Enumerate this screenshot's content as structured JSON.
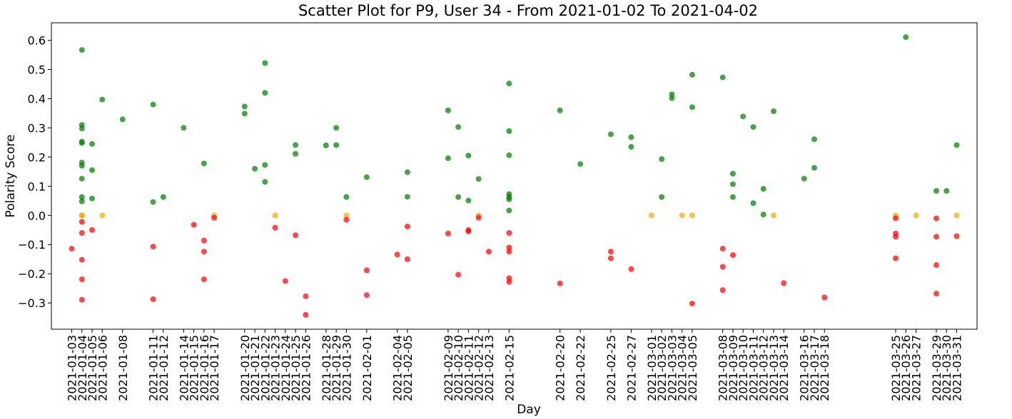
{
  "chart_data": {
    "type": "scatter",
    "title": "Scatter Plot for P9, User 34 - From 2021-01-02 To 2021-04-02",
    "xlabel": "Day",
    "ylabel": "Polarity Score",
    "ylim": [
      -0.39,
      0.66
    ],
    "xlim": [
      "2021-01-01",
      "2021-04-02"
    ],
    "grid": false,
    "y_ticks": [
      "0.6",
      "0.5",
      "0.4",
      "0.3",
      "0.2",
      "0.1",
      "0.0",
      "−0.1",
      "−0.2",
      "−0.3"
    ],
    "y_tick_values": [
      0.6,
      0.5,
      0.4,
      0.3,
      0.2,
      0.1,
      0.0,
      -0.1,
      -0.2,
      -0.3
    ],
    "x_ticks": [
      "2021-01-03",
      "2021-01-04",
      "2021-01-05",
      "2021-01-06",
      "2021-01-08",
      "2021-01-11",
      "2021-01-12",
      "2021-01-14",
      "2021-01-15",
      "2021-01-16",
      "2021-01-17",
      "2021-01-20",
      "2021-01-21",
      "2021-01-22",
      "2021-01-23",
      "2021-01-24",
      "2021-01-25",
      "2021-01-26",
      "2021-01-28",
      "2021-01-29",
      "2021-01-30",
      "2021-02-01",
      "2021-02-04",
      "2021-02-05",
      "2021-02-09",
      "2021-02-10",
      "2021-02-11",
      "2021-02-12",
      "2021-02-13",
      "2021-02-15",
      "2021-02-20",
      "2021-02-22",
      "2021-02-25",
      "2021-02-27",
      "2021-03-01",
      "2021-03-02",
      "2021-03-03",
      "2021-03-04",
      "2021-03-05",
      "2021-03-08",
      "2021-03-09",
      "2021-03-10",
      "2021-03-11",
      "2021-03-12",
      "2021-03-13",
      "2021-03-14",
      "2021-03-16",
      "2021-03-17",
      "2021-03-18",
      "2021-03-25",
      "2021-03-26",
      "2021-03-27",
      "2021-03-29",
      "2021-03-30",
      "2021-03-31"
    ],
    "colors": {
      "positive": "#008000",
      "neutral": "#ffa500",
      "negative": "#ff0000"
    },
    "series": [
      {
        "color": "positive",
        "points": [
          [
            "2021-01-04",
            0.567
          ],
          [
            "2021-01-04",
            0.31
          ],
          [
            "2021-01-04",
            0.298
          ],
          [
            "2021-01-04",
            0.253
          ],
          [
            "2021-01-04",
            0.248
          ],
          [
            "2021-01-04",
            0.181
          ],
          [
            "2021-01-04",
            0.17
          ],
          [
            "2021-01-04",
            0.126
          ],
          [
            "2021-01-04",
            0.063
          ],
          [
            "2021-01-04",
            0.048
          ],
          [
            "2021-01-05",
            0.245
          ],
          [
            "2021-01-05",
            0.155
          ],
          [
            "2021-01-05",
            0.058
          ],
          [
            "2021-01-06",
            0.397
          ],
          [
            "2021-01-08",
            0.329
          ],
          [
            "2021-01-11",
            0.38
          ],
          [
            "2021-01-11",
            0.046
          ],
          [
            "2021-01-12",
            0.063
          ],
          [
            "2021-01-14",
            0.3
          ],
          [
            "2021-01-16",
            0.178
          ],
          [
            "2021-01-20",
            0.373
          ],
          [
            "2021-01-20",
            0.349
          ],
          [
            "2021-01-21",
            0.16
          ],
          [
            "2021-01-22",
            0.522
          ],
          [
            "2021-01-22",
            0.42
          ],
          [
            "2021-01-22",
            0.173
          ],
          [
            "2021-01-22",
            0.115
          ],
          [
            "2021-01-25",
            0.241
          ],
          [
            "2021-01-25",
            0.211
          ],
          [
            "2021-01-28",
            0.24
          ],
          [
            "2021-01-29",
            0.3
          ],
          [
            "2021-01-29",
            0.241
          ],
          [
            "2021-01-30",
            0.063
          ],
          [
            "2021-02-01",
            0.131
          ],
          [
            "2021-02-05",
            0.148
          ],
          [
            "2021-02-05",
            0.064
          ],
          [
            "2021-02-09",
            0.36
          ],
          [
            "2021-02-09",
            0.196
          ],
          [
            "2021-02-10",
            0.303
          ],
          [
            "2021-02-10",
            0.063
          ],
          [
            "2021-02-11",
            0.205
          ],
          [
            "2021-02-11",
            0.051
          ],
          [
            "2021-02-12",
            0.125
          ],
          [
            "2021-02-15",
            0.452
          ],
          [
            "2021-02-15",
            0.289
          ],
          [
            "2021-02-15",
            0.206
          ],
          [
            "2021-02-15",
            0.073
          ],
          [
            "2021-02-15",
            0.063
          ],
          [
            "2021-02-15",
            0.055
          ],
          [
            "2021-02-15",
            0.017
          ],
          [
            "2021-02-20",
            0.36
          ],
          [
            "2021-02-22",
            0.176
          ],
          [
            "2021-02-25",
            0.278
          ],
          [
            "2021-02-27",
            0.268
          ],
          [
            "2021-02-27",
            0.235
          ],
          [
            "2021-03-02",
            0.193
          ],
          [
            "2021-03-02",
            0.063
          ],
          [
            "2021-03-03",
            0.415
          ],
          [
            "2021-03-03",
            0.402
          ],
          [
            "2021-03-05",
            0.482
          ],
          [
            "2021-03-05",
            0.371
          ],
          [
            "2021-03-08",
            0.473
          ],
          [
            "2021-03-09",
            0.143
          ],
          [
            "2021-03-09",
            0.107
          ],
          [
            "2021-03-09",
            0.063
          ],
          [
            "2021-03-10",
            0.339
          ],
          [
            "2021-03-11",
            0.303
          ],
          [
            "2021-03-11",
            0.042
          ],
          [
            "2021-03-12",
            0.091
          ],
          [
            "2021-03-12",
            0.003
          ],
          [
            "2021-03-13",
            0.357
          ],
          [
            "2021-03-16",
            0.126
          ],
          [
            "2021-03-17",
            0.261
          ],
          [
            "2021-03-17",
            0.163
          ],
          [
            "2021-03-26",
            0.611
          ],
          [
            "2021-03-29",
            0.084
          ],
          [
            "2021-03-30",
            0.084
          ],
          [
            "2021-03-31",
            0.241
          ]
        ]
      },
      {
        "color": "neutral",
        "points": [
          [
            "2021-01-04",
            0.0
          ],
          [
            "2021-01-04",
            0.0
          ],
          [
            "2021-01-06",
            0.0
          ],
          [
            "2021-01-17",
            0.0
          ],
          [
            "2021-01-23",
            0.0
          ],
          [
            "2021-01-30",
            0.0
          ],
          [
            "2021-02-12",
            0.0
          ],
          [
            "2021-03-01",
            0.0
          ],
          [
            "2021-03-04",
            0.0
          ],
          [
            "2021-03-05",
            0.0
          ],
          [
            "2021-03-13",
            0.0
          ],
          [
            "2021-03-25",
            0.0
          ],
          [
            "2021-03-27",
            0.0
          ],
          [
            "2021-03-31",
            0.0
          ]
        ]
      },
      {
        "color": "negative",
        "points": [
          [
            "2021-01-03",
            -0.114
          ],
          [
            "2021-01-04",
            -0.022
          ],
          [
            "2021-01-04",
            -0.06
          ],
          [
            "2021-01-04",
            -0.152
          ],
          [
            "2021-01-04",
            -0.219
          ],
          [
            "2021-01-04",
            -0.289
          ],
          [
            "2021-01-05",
            -0.05
          ],
          [
            "2021-01-11",
            -0.107
          ],
          [
            "2021-01-11",
            -0.287
          ],
          [
            "2021-01-15",
            -0.032
          ],
          [
            "2021-01-16",
            -0.086
          ],
          [
            "2021-01-16",
            -0.124
          ],
          [
            "2021-01-16",
            -0.219
          ],
          [
            "2021-01-17",
            -0.008
          ],
          [
            "2021-01-23",
            -0.042
          ],
          [
            "2021-01-24",
            -0.225
          ],
          [
            "2021-01-25",
            -0.068
          ],
          [
            "2021-01-26",
            -0.277
          ],
          [
            "2021-01-26",
            -0.341
          ],
          [
            "2021-01-30",
            -0.015
          ],
          [
            "2021-02-01",
            -0.188
          ],
          [
            "2021-02-01",
            -0.273
          ],
          [
            "2021-02-04",
            -0.134
          ],
          [
            "2021-02-05",
            -0.038
          ],
          [
            "2021-02-05",
            -0.15
          ],
          [
            "2021-02-09",
            -0.062
          ],
          [
            "2021-02-10",
            -0.203
          ],
          [
            "2021-02-11",
            -0.05
          ],
          [
            "2021-02-11",
            -0.055
          ],
          [
            "2021-02-12",
            -0.008
          ],
          [
            "2021-02-13",
            -0.124
          ],
          [
            "2021-02-15",
            -0.06
          ],
          [
            "2021-02-15",
            -0.11
          ],
          [
            "2021-02-15",
            -0.124
          ],
          [
            "2021-02-15",
            -0.215
          ],
          [
            "2021-02-15",
            -0.228
          ],
          [
            "2021-02-20",
            -0.233
          ],
          [
            "2021-02-25",
            -0.124
          ],
          [
            "2021-02-25",
            -0.147
          ],
          [
            "2021-02-27",
            -0.184
          ],
          [
            "2021-03-05",
            -0.302
          ],
          [
            "2021-03-08",
            -0.114
          ],
          [
            "2021-03-08",
            -0.176
          ],
          [
            "2021-03-08",
            -0.256
          ],
          [
            "2021-03-09",
            -0.136
          ],
          [
            "2021-03-14",
            -0.232
          ],
          [
            "2021-03-18",
            -0.281
          ],
          [
            "2021-03-25",
            -0.01
          ],
          [
            "2021-03-25",
            -0.062
          ],
          [
            "2021-03-25",
            -0.073
          ],
          [
            "2021-03-25",
            -0.147
          ],
          [
            "2021-03-29",
            -0.01
          ],
          [
            "2021-03-29",
            -0.073
          ],
          [
            "2021-03-29",
            -0.17
          ],
          [
            "2021-03-29",
            -0.268
          ],
          [
            "2021-03-31",
            -0.071
          ]
        ]
      }
    ]
  }
}
